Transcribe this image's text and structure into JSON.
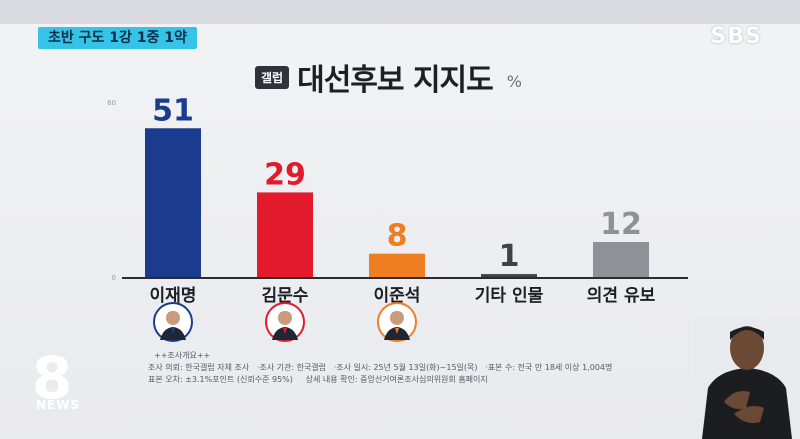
{
  "header": {
    "tag_label": "초반 구도 1강 1중 1약",
    "channel_logo": "SBS",
    "source_badge": "갤럽",
    "title": "대선후보 지지도",
    "unit": "%"
  },
  "chart_data": {
    "type": "bar",
    "title": "대선후보 지지도",
    "unit": "%",
    "categories": [
      "이재명",
      "김문수",
      "이준석",
      "기타 인물",
      "의견 유보"
    ],
    "values": [
      51,
      29,
      8,
      1,
      12
    ],
    "colors": [
      "#1b3b8f",
      "#e21a2c",
      "#ef7d22",
      "#404248",
      "#8f9197"
    ],
    "ylim": [
      0,
      60
    ],
    "yticks": [
      "60",
      "0"
    ],
    "grid": false,
    "legend": "none"
  },
  "avatars": [
    {
      "name": "candidate-1-avatar",
      "ring": "#1b3b8f"
    },
    {
      "name": "candidate-2-avatar",
      "ring": "#e21a2c"
    },
    {
      "name": "candidate-3-avatar",
      "ring": "#ef7d22"
    }
  ],
  "survey_notes": {
    "heading": "++조사개요++",
    "line1_a": "조사 의뢰: 한국갤럽 자체 조사",
    "line1_b": "·조사 기관: 한국갤럽",
    "line1_c": "·조사 일시: 25년 5월 13일(화)~15일(목)",
    "line1_d": "·표본 수: 전국 만 18세 이상 1,004명",
    "line2_a": "표본 오차: ±3.1%포인트 (신뢰수준 95%)",
    "line2_b": "상세 내용 확인: 중앙선거여론조사심의위원회 홈페이지"
  },
  "footer": {
    "news_logo": "8",
    "news_label": "NEWS"
  }
}
